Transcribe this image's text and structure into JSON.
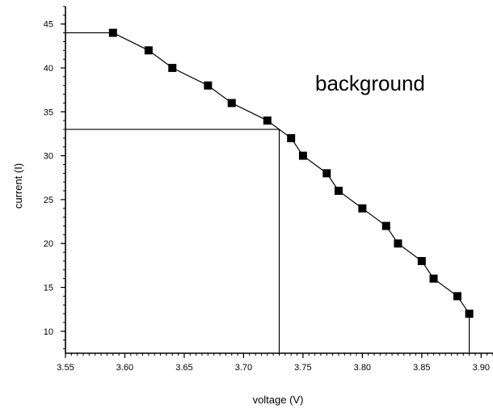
{
  "chart_data": {
    "type": "line",
    "xlabel": "voltage (V)",
    "ylabel": "current (I)",
    "xlim": [
      3.55,
      3.91
    ],
    "ylim": [
      7.5,
      47
    ],
    "xticks": [
      "3.55",
      "3.60",
      "3.65",
      "3.70",
      "3.75",
      "3.80",
      "3.85",
      "3.90"
    ],
    "yticks": [
      "10",
      "15",
      "20",
      "25",
      "30",
      "35",
      "40",
      "45"
    ],
    "annotation": "background",
    "series": [
      {
        "x": [
          3.59,
          3.62,
          3.64,
          3.67,
          3.69,
          3.72,
          3.74,
          3.75,
          3.77,
          3.78,
          3.8,
          3.82,
          3.83,
          3.85,
          3.86,
          3.88,
          3.89
        ],
        "y": [
          44,
          42,
          40,
          38,
          36,
          34,
          32,
          30,
          28,
          26,
          24,
          22,
          20,
          18,
          16,
          14,
          12
        ]
      }
    ],
    "reference_lines": [
      {
        "x": [
          3.55,
          3.59
        ],
        "y": [
          44,
          44
        ]
      },
      {
        "x": [
          3.55,
          3.73
        ],
        "y": [
          33,
          33
        ]
      },
      {
        "x": [
          3.73,
          3.73
        ],
        "y": [
          7.5,
          33
        ]
      },
      {
        "x": [
          3.89,
          3.89
        ],
        "y": [
          7.5,
          12
        ]
      }
    ],
    "grid": false,
    "legend": "none"
  }
}
